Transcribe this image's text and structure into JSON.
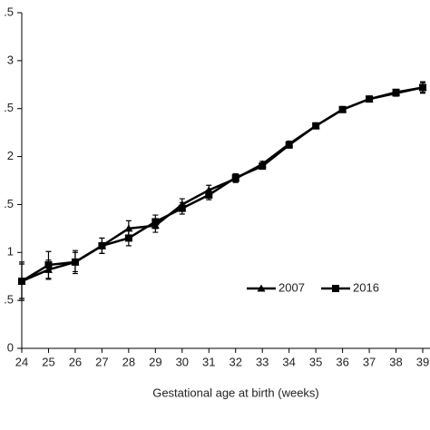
{
  "chart_data": {
    "type": "line",
    "x_label": "Gestational age at birth (weeks)",
    "x": [
      24,
      25,
      26,
      27,
      28,
      29,
      30,
      31,
      32,
      33,
      34,
      35,
      36,
      37,
      38,
      39
    ],
    "xlim": [
      24,
      39
    ],
    "xticks": [
      24,
      25,
      26,
      27,
      28,
      29,
      30,
      31,
      32,
      33,
      34,
      35,
      36,
      37,
      38,
      39
    ],
    "ylim": [
      0,
      3.5
    ],
    "yticks": [
      0,
      {
        "value": 0.5,
        "label": ".5"
      },
      1,
      {
        "value": 1.5,
        "label": ".5"
      },
      2,
      {
        "value": 2.5,
        "label": ".5"
      },
      3,
      {
        "value": 3.5,
        "label": ".5"
      }
    ],
    "legend": "right",
    "series": [
      {
        "name": "2007",
        "color": "#000000",
        "marker": "triangle",
        "values": [
          0.7,
          0.82,
          0.9,
          1.07,
          1.25,
          1.28,
          1.5,
          1.65,
          1.77,
          1.92,
          2.13,
          2.32,
          2.49,
          2.6,
          2.66,
          2.72
        ],
        "errors": [
          0.2,
          0.1,
          0.1,
          0.08,
          0.08,
          0.07,
          0.06,
          0.05,
          0.04,
          0.03,
          0.03,
          0.02,
          0.02,
          0.02,
          0.03,
          0.05
        ]
      },
      {
        "name": "2016",
        "color": "#000000",
        "marker": "square",
        "values": [
          0.7,
          0.87,
          0.9,
          1.07,
          1.15,
          1.32,
          1.46,
          1.6,
          1.78,
          1.9,
          2.12,
          2.32,
          2.49,
          2.6,
          2.67,
          2.72
        ],
        "errors": [
          0.18,
          0.14,
          0.12,
          0.08,
          0.08,
          0.07,
          0.06,
          0.05,
          0.04,
          0.03,
          0.03,
          0.02,
          0.02,
          0.02,
          0.03,
          0.06
        ]
      }
    ]
  }
}
